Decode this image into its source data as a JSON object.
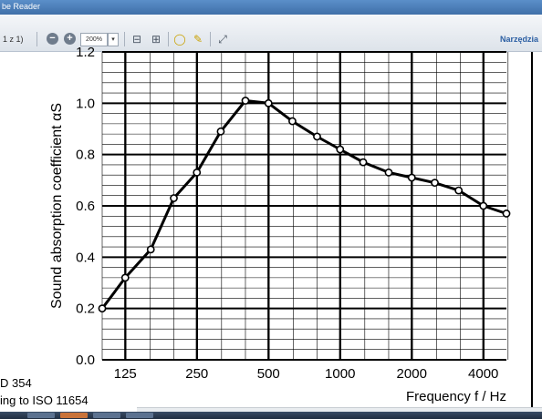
{
  "titlebar": {
    "app_title": "be Reader",
    "doc_title": ""
  },
  "toolbar": {
    "page_counter": "1 z 1)",
    "zoom_value": "200%",
    "zoom_dropdown_symbol": "▾",
    "tools_label": "Narzędzia",
    "icons": [
      "zoom-out-icon",
      "zoom-in-icon",
      "fit-page-icon",
      "fit-width-icon",
      "comment-icon",
      "highlight-icon",
      "expand-icon"
    ]
  },
  "document": {
    "caption_line1": "D 354",
    "caption_line2": "ing to ISO 11654"
  },
  "chart_data": {
    "type": "line",
    "ylabel": "Sound absorption coefficient αS",
    "xlabel": "Frequency f / Hz",
    "y_ticks": [
      "0.0",
      "0.2",
      "0.4",
      "0.6",
      "0.8",
      "1.0",
      "1.2"
    ],
    "ylim": [
      0.0,
      1.2
    ],
    "x_ticks": [
      "125",
      "250",
      "500",
      "1000",
      "2000",
      "4000"
    ],
    "x_ticks_hz": [
      125,
      250,
      500,
      1000,
      2000,
      4000
    ],
    "x_scale": "log",
    "xlim_hz": [
      100,
      5000
    ],
    "grid": true,
    "series": [
      {
        "x": [
          100,
          125,
          160,
          200,
          250,
          315,
          400,
          500,
          630,
          800,
          1000,
          1250,
          1600,
          2000,
          2500,
          3150,
          4000,
          5000
        ],
        "values": [
          0.2,
          0.32,
          0.43,
          0.63,
          0.73,
          0.89,
          1.01,
          1.0,
          0.93,
          0.87,
          0.82,
          0.77,
          0.73,
          0.71,
          0.69,
          0.66,
          0.6,
          0.57
        ]
      }
    ],
    "colors": {
      "line": "#000000",
      "marker_fill": "#ffffff"
    }
  }
}
